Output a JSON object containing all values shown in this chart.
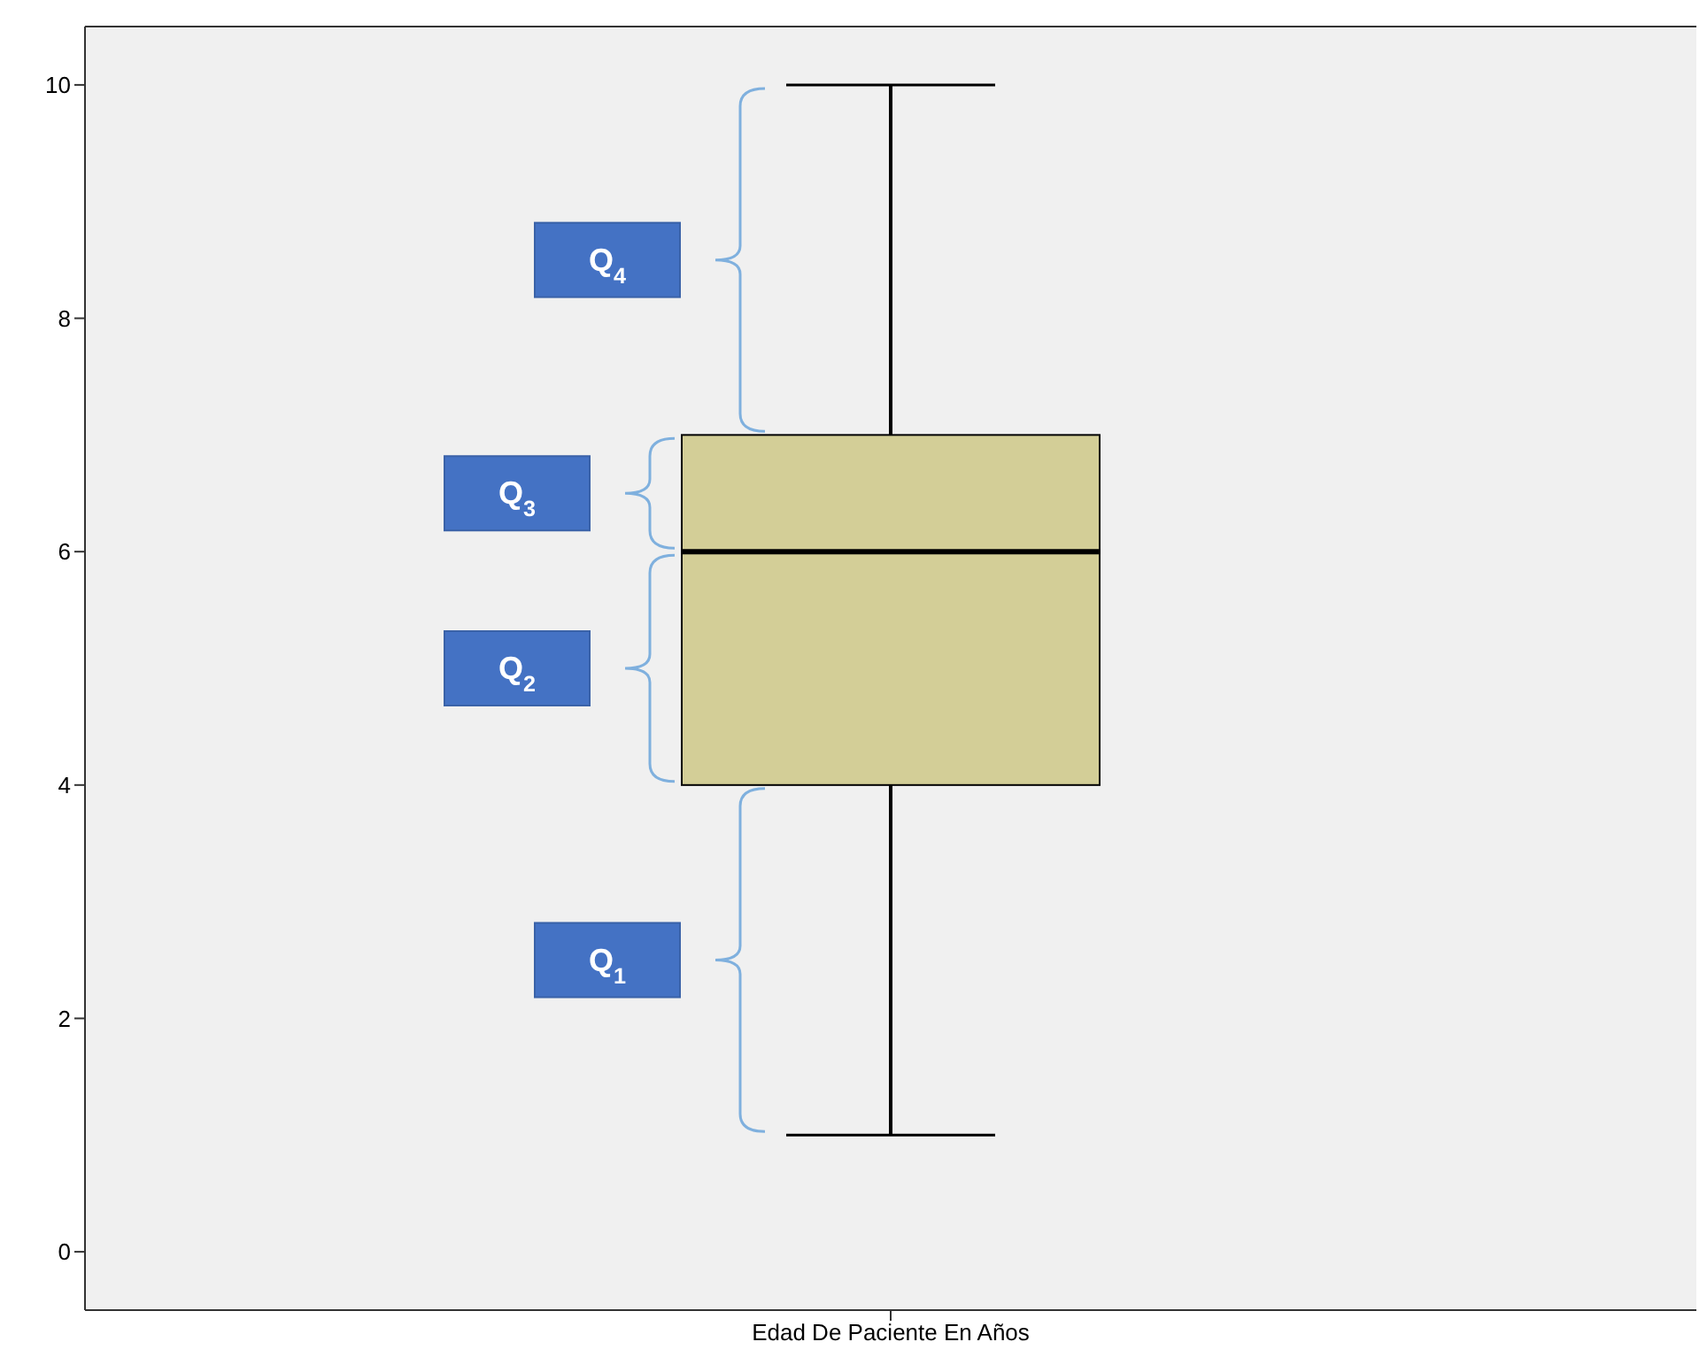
{
  "chart_data": {
    "type": "box",
    "categories": [
      "Edad De Paciente En Años"
    ],
    "color": "#d3ce97",
    "boxes": [
      {
        "low": 1,
        "q1": 4,
        "median": 6,
        "q3": 7,
        "high": 10
      }
    ],
    "ylim": [
      -0.5,
      10.5
    ],
    "yticks": [
      0,
      2,
      4,
      6,
      8,
      10
    ],
    "annotations": [
      "Q$_{1}$",
      "Q$_{2}$",
      "Q$_{3}$",
      "Q$_{4}$"
    ]
  }
}
